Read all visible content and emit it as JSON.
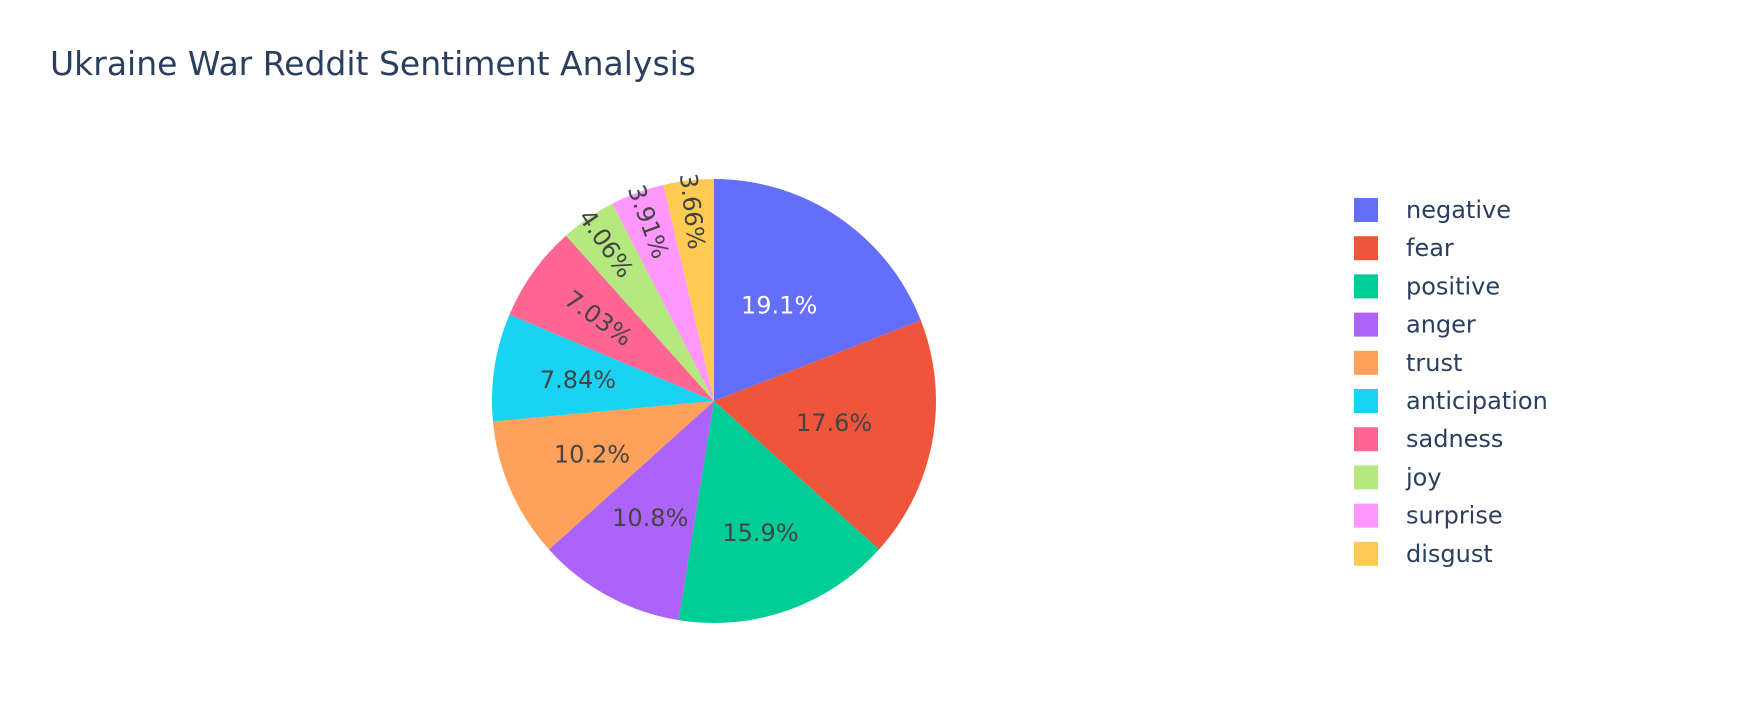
{
  "chart_data": {
    "type": "pie",
    "title": "Ukraine War Reddit Sentiment Analysis",
    "labels": [
      "negative",
      "fear",
      "positive",
      "anger",
      "trust",
      "anticipation",
      "sadness",
      "joy",
      "surprise",
      "disgust"
    ],
    "values": [
      19.1,
      17.6,
      15.9,
      10.8,
      10.2,
      7.84,
      7.03,
      4.06,
      3.91,
      3.66
    ],
    "text_labels": [
      "19.1%",
      "17.6%",
      "15.9%",
      "10.8%",
      "10.2%",
      "7.84%",
      "7.03%",
      "4.06%",
      "3.91%",
      "3.66%"
    ],
    "colors": [
      "#636efa",
      "#EF553B",
      "#00cc96",
      "#ab63fa",
      "#FFA15A",
      "#19d3f3",
      "#FF6692",
      "#B6E880",
      "#FF97FF",
      "#FECB52"
    ],
    "legend_position": "right",
    "direction": "clockwise",
    "rotation": "starts at 12 o'clock"
  }
}
